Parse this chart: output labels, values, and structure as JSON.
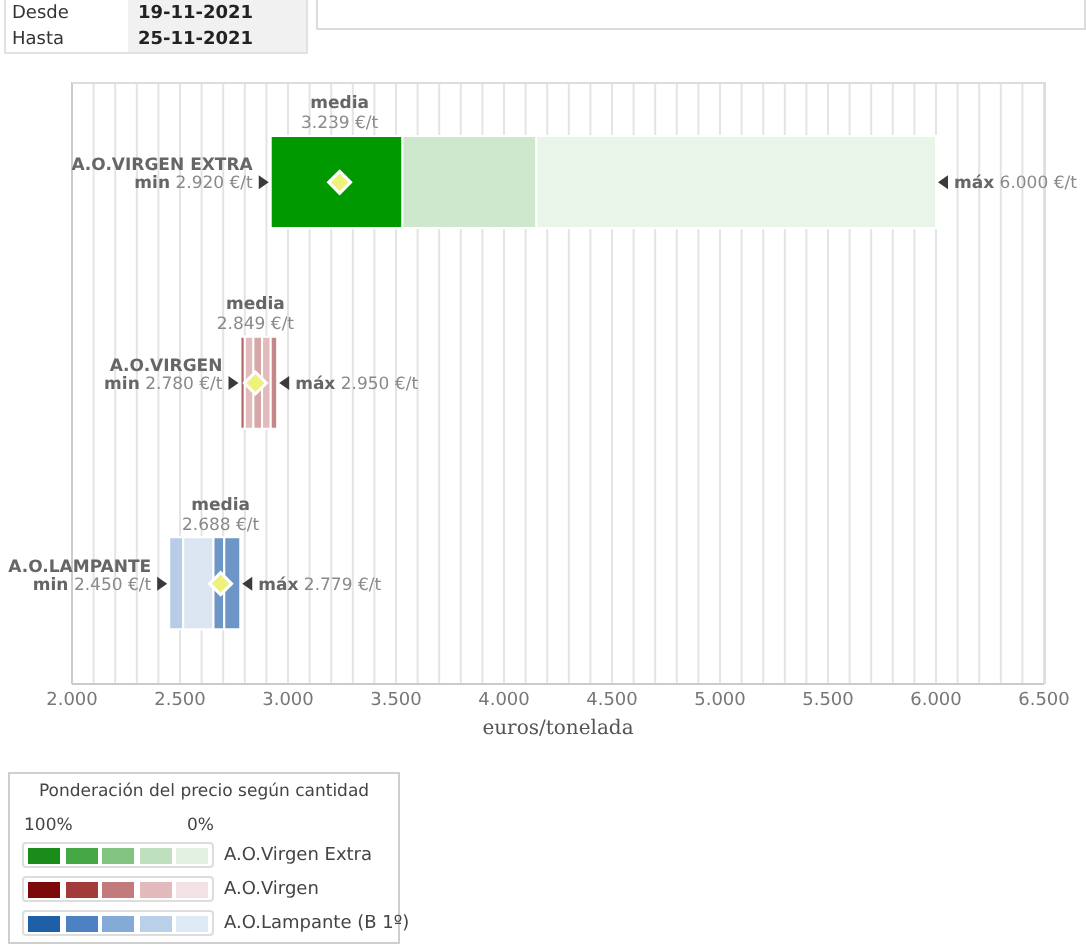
{
  "chart_data": [
    {
      "type": "bar",
      "orientation": "horizontal",
      "categories": [
        "A.O.VIRGEN EXTRA",
        "A.O.VIRGEN",
        "A.O.LAMPANTE"
      ],
      "series": [
        {
          "base": [
            2920,
            2780,
            2450
          ],
          "values": [
            610,
            20,
            65
          ],
          "colors": [
            "#009900",
            "#b06666",
            "#b7cde6"
          ]
        },
        {
          "base": [
            3530,
            2800,
            2515
          ],
          "values": [
            620,
            40,
            140
          ],
          "colors": [
            "#cde8cd",
            "#e2bcbc",
            "#dbe6f2"
          ]
        },
        {
          "base": [
            4150,
            2840,
            2655
          ],
          "values": [
            1850,
            40,
            50
          ],
          "colors": [
            "#eaf5ea",
            "#d7a6a6",
            "#6d96c6"
          ]
        },
        {
          "base": [
            null,
            2880,
            2705
          ],
          "values": [
            null,
            40,
            74
          ],
          "colors": [
            null,
            "#e2bcbc",
            "#6d96c6"
          ]
        },
        {
          "base": [
            null,
            2920,
            null
          ],
          "values": [
            null,
            30,
            null
          ],
          "colors": [
            null,
            "#c58888",
            null
          ]
        },
        {
          "type": "scatter",
          "color": "#eef27a",
          "values": [
            3239,
            2849,
            2688
          ]
        }
      ],
      "xlim": [
        2000,
        6500
      ],
      "xticks": [
        {
          "value": 2000,
          "label": "2.000"
        },
        {
          "value": 2100,
          "label": null
        },
        {
          "value": 2200,
          "label": null
        },
        {
          "value": 2300,
          "label": null
        },
        {
          "value": 2400,
          "label": null
        },
        {
          "value": 2500,
          "label": "2.500"
        },
        {
          "value": 2600,
          "label": null
        },
        {
          "value": 2700,
          "label": null
        },
        {
          "value": 2800,
          "label": null
        },
        {
          "value": 2900,
          "label": null
        },
        {
          "value": 3000,
          "label": "3.000"
        },
        {
          "value": 3100,
          "label": null
        },
        {
          "value": 3200,
          "label": null
        },
        {
          "value": 3300,
          "label": null
        },
        {
          "value": 3400,
          "label": null
        },
        {
          "value": 3500,
          "label": "3.500"
        },
        {
          "value": 3600,
          "label": null
        },
        {
          "value": 3700,
          "label": null
        },
        {
          "value": 3800,
          "label": null
        },
        {
          "value": 3900,
          "label": null
        },
        {
          "value": 4000,
          "label": "4.000"
        },
        {
          "value": 4100,
          "label": null
        },
        {
          "value": 4200,
          "label": null
        },
        {
          "value": 4300,
          "label": null
        },
        {
          "value": 4400,
          "label": null
        },
        {
          "value": 4500,
          "label": "4.500"
        },
        {
          "value": 4600,
          "label": null
        },
        {
          "value": 4700,
          "label": null
        },
        {
          "value": 4800,
          "label": null
        },
        {
          "value": 4900,
          "label": null
        },
        {
          "value": 5000,
          "label": "5.000"
        },
        {
          "value": 5100,
          "label": null
        },
        {
          "value": 5200,
          "label": null
        },
        {
          "value": 5300,
          "label": null
        },
        {
          "value": 5400,
          "label": null
        },
        {
          "value": 5500,
          "label": "5.500"
        },
        {
          "value": 5600,
          "label": null
        },
        {
          "value": 5700,
          "label": null
        },
        {
          "value": 5800,
          "label": null
        },
        {
          "value": 5900,
          "label": null
        },
        {
          "value": 6000,
          "label": "6.000"
        },
        {
          "value": 6100,
          "label": null
        },
        {
          "value": 6200,
          "label": null
        },
        {
          "value": 6300,
          "label": null
        },
        {
          "value": 6400,
          "label": null
        },
        {
          "value": 6500,
          "label": "6.500"
        }
      ],
      "xlabel": "euros/tonelada",
      "grid": "x",
      "marker": "diamond",
      "annotations": [
        "Desde 19-11-2021",
        "Hasta 25-11-2021",
        {
          "text": "min 2.920 €/t",
          "x": 2920,
          "y": "A.O.VIRGEN EXTRA"
        },
        {
          "text": "máx 6.000 €/t",
          "x": 6000,
          "y": "A.O.VIRGEN EXTRA"
        },
        {
          "text": "media\n3.239 €/t",
          "x": 3239,
          "y": "A.O.VIRGEN EXTRA"
        },
        {
          "text": "min 2.780 €/t",
          "x": 2780,
          "y": "A.O.VIRGEN"
        },
        {
          "text": "máx 2.950 €/t",
          "x": 2950,
          "y": "A.O.VIRGEN"
        },
        {
          "text": "media\n2.849 €/t",
          "x": 2849,
          "y": "A.O.VIRGEN"
        },
        {
          "text": "min 2.450 €/t",
          "x": 2450,
          "y": "A.O.LAMPANTE"
        },
        {
          "text": "máx 2.779 €/t",
          "x": 2779,
          "y": "A.O.LAMPANTE"
        },
        {
          "text": "media\n2.688 €/t",
          "x": 2688,
          "y": "A.O.LAMPANTE"
        }
      ]
    },
    {
      "type": "other",
      "title": "Ponderación del precio según cantidad",
      "categories": [
        "100%",
        null,
        null,
        null,
        "0%"
      ],
      "y2_categories": [
        "A.O.Virgen Extra",
        "A.O.Virgen",
        "A.O.Lampante (B 1º)"
      ],
      "colors": [
        [
          "#1a8c1a",
          "#45a845",
          "#80c480",
          "#bfe0bf",
          "#e3f1e3"
        ],
        [
          "#7d0a0a",
          "#a33b3b",
          "#c27a7a",
          "#e2babe",
          "#f3e2e4"
        ],
        [
          "#1f5fa8",
          "#4d82c2",
          "#84aad8",
          "#bad0e9",
          "#dfe9f5"
        ]
      ]
    }
  ]
}
